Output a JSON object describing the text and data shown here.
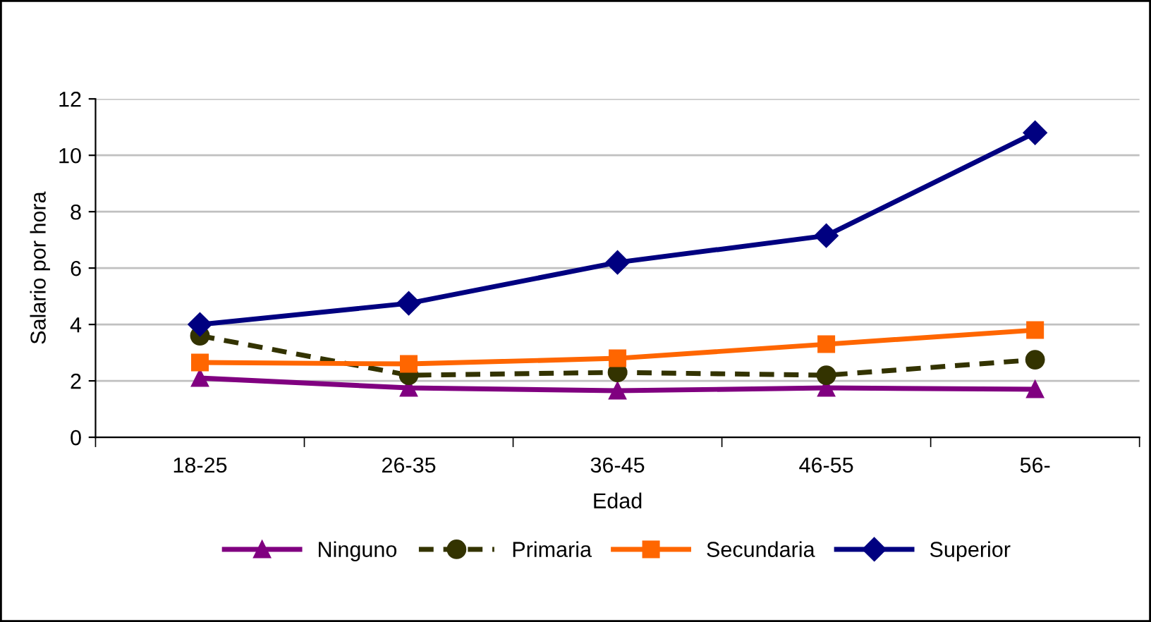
{
  "chart_data": {
    "type": "line",
    "xlabel": "Edad",
    "ylabel": "Salario por hora",
    "categories": [
      "18-25",
      "26-35",
      "36-45",
      "46-55",
      "56-"
    ],
    "series": [
      {
        "name": "Ninguno",
        "color": "#800080",
        "marker": "triangle",
        "line_style": "solid",
        "values": [
          2.1,
          1.75,
          1.65,
          1.75,
          1.7
        ]
      },
      {
        "name": "Primaria",
        "color": "#333300",
        "marker": "circle",
        "line_style": "dashed",
        "values": [
          3.6,
          2.2,
          2.3,
          2.2,
          2.75
        ]
      },
      {
        "name": "Secundaria",
        "color": "#ff6600",
        "marker": "square",
        "line_style": "solid",
        "values": [
          2.65,
          2.6,
          2.8,
          3.3,
          3.8
        ]
      },
      {
        "name": "Superior",
        "color": "#000080",
        "marker": "diamond",
        "line_style": "solid",
        "values": [
          4.0,
          4.75,
          6.2,
          7.15,
          10.8
        ]
      }
    ],
    "ylim": [
      0,
      12
    ],
    "yticks": [
      0,
      2,
      4,
      6,
      8,
      10,
      12
    ],
    "grid": "y",
    "legend": "bottom"
  }
}
